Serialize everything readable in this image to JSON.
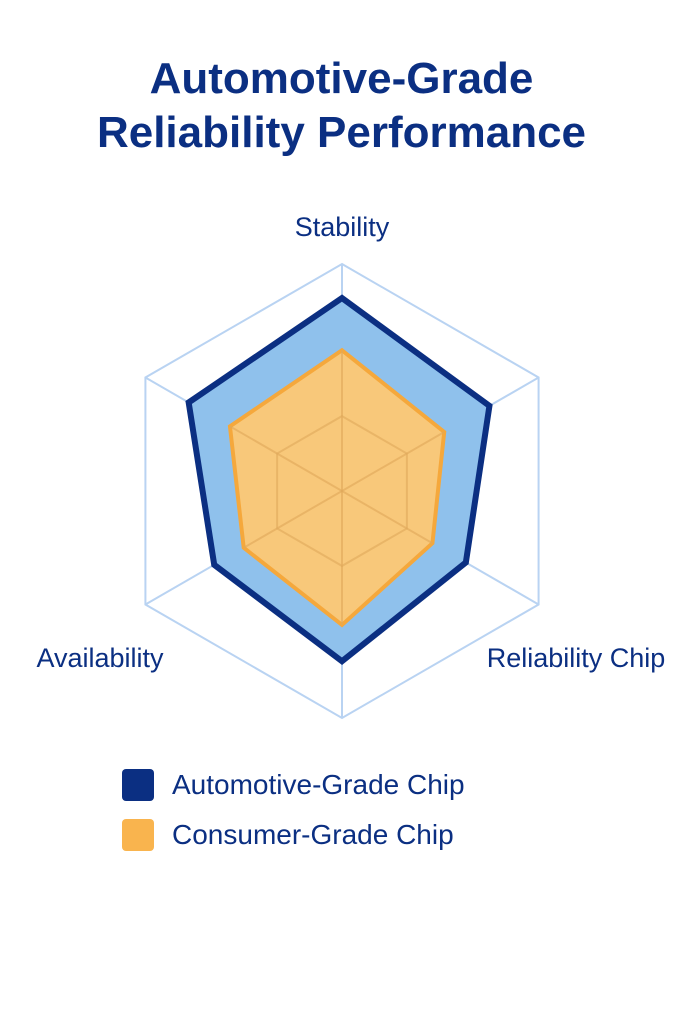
{
  "chart_data": {
    "type": "radar",
    "title": [
      "Automotive-Grade",
      "Reliability Performance"
    ],
    "axes": [
      "Stability",
      "",
      "Reliability Chip",
      "",
      "Availability",
      ""
    ],
    "range": [
      0,
      100
    ],
    "grid_levels": [
      33,
      100
    ],
    "series": [
      {
        "name": "Automotive-Grade Chip",
        "values": [
          85,
          75,
          63,
          75,
          65,
          78
        ],
        "color": "#0b2f82",
        "fill": "#8fc1ec"
      },
      {
        "name": "Consumer-Grade Chip",
        "values": [
          62,
          52,
          46,
          59,
          50,
          57
        ],
        "color": "#f5a83c",
        "fill": "#f8c87a"
      }
    ],
    "legend_position": "bottom-left"
  }
}
